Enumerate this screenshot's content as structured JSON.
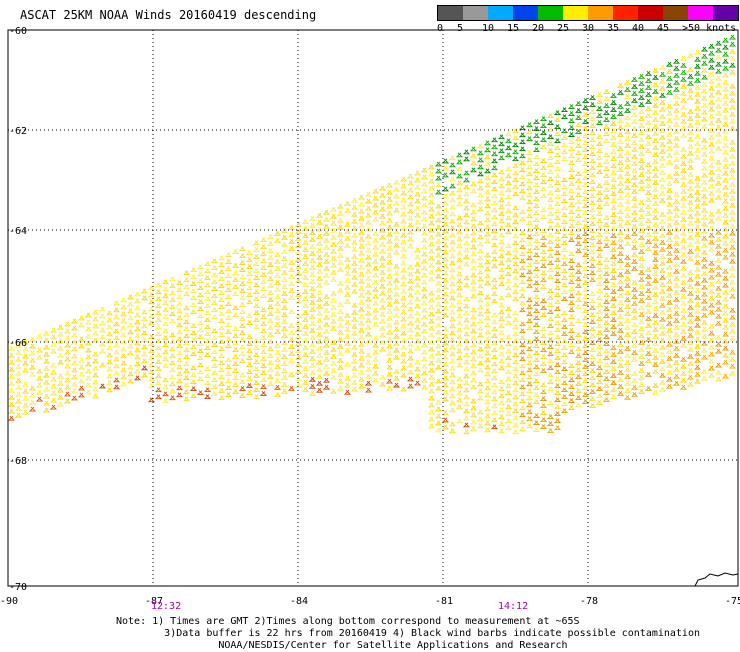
{
  "title": "ASCAT 25KM NOAA Winds 20160419 descending",
  "legend": {
    "labels": [
      "0",
      "5",
      "10",
      "15",
      "20",
      "25",
      "30",
      "35",
      "40",
      "45",
      ">50 knots"
    ],
    "colors": [
      "#555555",
      "#999999",
      "#00aaff",
      "#0044ee",
      "#00bb00",
      "#ffee00",
      "#ff9900",
      "#ff2200",
      "#cc0000",
      "#884400",
      "#ff00ff",
      "#6600aa"
    ]
  },
  "map": {
    "lat_labels": [
      "-60",
      "-62",
      "-64",
      "-66",
      "-68",
      "-70"
    ],
    "lon_labels": [
      "-90",
      "-87",
      "-84",
      "-81",
      "-78",
      "-75"
    ],
    "time_labels": [
      "12:32",
      "14:12"
    ],
    "time_color": "#aa00aa"
  },
  "notes": {
    "line1": "Note: 1) Times are GMT 2)Times along bottom correspond to measurement at ~65S",
    "line2": "3)Data buffer is 22 hrs from 20160419 4) Black wind barbs indicate possible contamination",
    "line3": "NOAA/NESDIS/Center for Satellite Applications and Research"
  }
}
